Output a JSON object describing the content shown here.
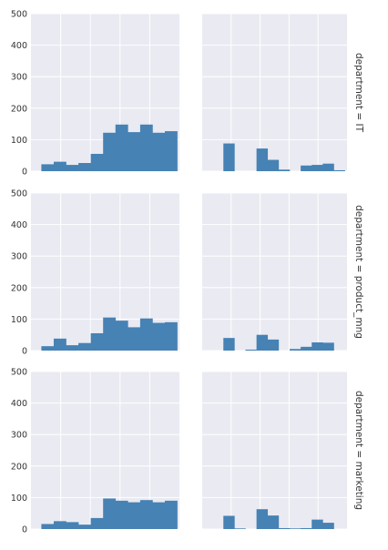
{
  "chart_data": {
    "type": "bar",
    "layout": "facet-grid 3 rows x 2 columns, histograms",
    "ylim": [
      0,
      500
    ],
    "yticks": [
      0,
      100,
      200,
      300,
      400,
      500
    ],
    "grid": true,
    "bar_color": "#4682b4",
    "panel_bg": "#eaeaf2",
    "grid_color": "#ffffff",
    "rows": [
      {
        "label": "department = IT",
        "panels": [
          [
            22,
            30,
            20,
            26,
            55,
            122,
            148,
            124,
            148,
            122,
            127
          ],
          [
            0,
            88,
            0,
            0,
            72,
            36,
            5,
            0,
            18,
            20,
            24,
            3
          ]
        ]
      },
      {
        "label": "department = product_mng",
        "panels": [
          [
            14,
            38,
            17,
            24,
            55,
            105,
            95,
            74,
            102,
            88,
            90
          ],
          [
            0,
            40,
            0,
            3,
            50,
            35,
            0,
            5,
            12,
            26,
            25,
            0
          ]
        ]
      },
      {
        "label": "department = marketing",
        "panels": [
          [
            16,
            25,
            22,
            14,
            35,
            97,
            90,
            85,
            92,
            85,
            90
          ],
          [
            0,
            42,
            2,
            0,
            63,
            43,
            3,
            2,
            3,
            30,
            20,
            0
          ]
        ]
      }
    ]
  }
}
